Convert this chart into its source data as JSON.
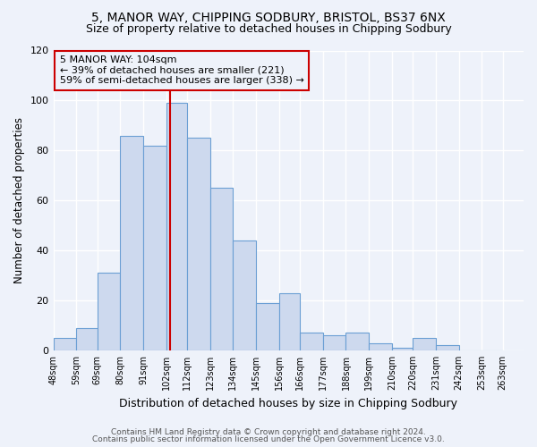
{
  "title": "5, MANOR WAY, CHIPPING SODBURY, BRISTOL, BS37 6NX",
  "subtitle": "Size of property relative to detached houses in Chipping Sodbury",
  "xlabel": "Distribution of detached houses by size in Chipping Sodbury",
  "ylabel": "Number of detached properties",
  "bin_labels": [
    "48sqm",
    "59sqm",
    "69sqm",
    "80sqm",
    "91sqm",
    "102sqm",
    "112sqm",
    "123sqm",
    "134sqm",
    "145sqm",
    "156sqm",
    "166sqm",
    "177sqm",
    "188sqm",
    "199sqm",
    "210sqm",
    "220sqm",
    "231sqm",
    "242sqm",
    "253sqm",
    "263sqm"
  ],
  "bin_edges": [
    48,
    59,
    69,
    80,
    91,
    102,
    112,
    123,
    134,
    145,
    156,
    166,
    177,
    188,
    199,
    210,
    220,
    231,
    242,
    253,
    263
  ],
  "bar_heights": [
    5,
    9,
    31,
    86,
    82,
    99,
    85,
    65,
    44,
    19,
    23,
    7,
    6,
    7,
    3,
    1,
    5,
    2,
    0,
    0
  ],
  "bar_color": "#cdd9ee",
  "bar_edge_color": "#6b9fd4",
  "vline_x": 104,
  "vline_color": "#cc0000",
  "annotation_text": "5 MANOR WAY: 104sqm\n← 39% of detached houses are smaller (221)\n59% of semi-detached houses are larger (338) →",
  "annotation_box_edge": "#cc0000",
  "ylim": [
    0,
    120
  ],
  "yticks": [
    0,
    20,
    40,
    60,
    80,
    100,
    120
  ],
  "footer_line1": "Contains HM Land Registry data © Crown copyright and database right 2024.",
  "footer_line2": "Contains public sector information licensed under the Open Government Licence v3.0.",
  "bg_color": "#eef2fa",
  "grid_color": "#ffffff",
  "title_fontsize": 10,
  "subtitle_fontsize": 9
}
